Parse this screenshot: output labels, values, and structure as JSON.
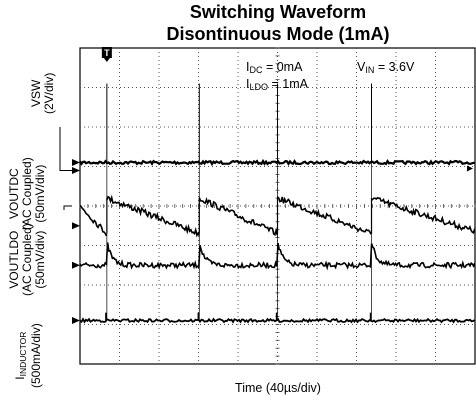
{
  "chart_data": {
    "type": "line",
    "title": "Switching Waveform",
    "subtitle": "Disontinuous Mode (1mA)",
    "xlabel": "Time (40µs/div)",
    "grid": true,
    "x_divisions": 10,
    "y_divisions": 8,
    "trigger_marker": "T",
    "annotations": {
      "idc": {
        "label": "I",
        "sub": "DC",
        "value": " = 0mA"
      },
      "ildo": {
        "label": "I",
        "sub": "LDO",
        "value": " = 1mA"
      },
      "vin": {
        "label": "V",
        "sub": "IN",
        "value": " = 3.6V"
      }
    },
    "channels": [
      {
        "name": "VSW",
        "scale": "(2V/div)",
        "sub": ""
      },
      {
        "name": "VOUTDC",
        "scale": "(50mV/div)",
        "coupling": "(AC Coupled)",
        "sub": ""
      },
      {
        "name": "VOUTLDO",
        "scale": "(50mV/div)",
        "coupling": "(AC Coupled)",
        "sub": ""
      },
      {
        "name": "I",
        "sub": "INDUCTOR",
        "scale": "(500mA/div)"
      }
    ],
    "switch_events_div": [
      0.68,
      3.02,
      5.0,
      7.38
    ],
    "vsw": {
      "baseline_div": 5.1,
      "spike_div": 7.1
    },
    "voutdc": {
      "high_div": 4.2,
      "low_div": 3.3,
      "ground_div": 3.5,
      "period_div": [
        2.34,
        1.98,
        2.38,
        2.38
      ],
      "first_start_div": 4.0,
      "last_end_div": 3.36
    },
    "voutldo": {
      "baseline_div": 2.5,
      "overshoot_div": 0.6
    },
    "inductor": {
      "baseline_div": 1.1,
      "spike_div": 1.3
    }
  }
}
